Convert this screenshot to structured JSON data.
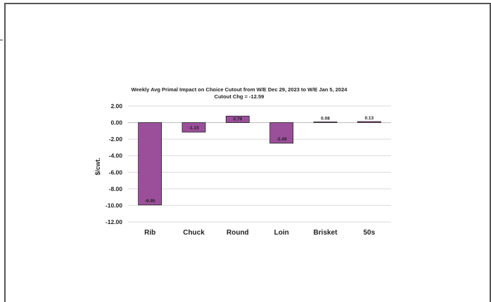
{
  "chart_data": {
    "type": "bar",
    "title": "Weekly Avg Primal Impact on Choice Cutout from W/E Dec 29, 2023 to W/E Jan 5, 2024",
    "subtitle": "Cutout Chg = -12.59",
    "ylabel": "$/cwt.",
    "xlabel": "",
    "categories": [
      "Rib",
      "Chuck",
      "Round",
      "Loin",
      "Brisket",
      "50s"
    ],
    "values": [
      -9.95,
      -1.15,
      0.79,
      -2.49,
      0.08,
      0.13
    ],
    "data_labels": [
      "-9.95",
      "-1.15",
      "0.79",
      "-2.49",
      "0.08",
      "0.13"
    ],
    "ylim": [
      -12,
      2
    ],
    "yticks": [
      2,
      0,
      -2,
      -4,
      -6,
      -8,
      -10,
      -12
    ],
    "ytick_labels": [
      "2.00",
      "0.00",
      "-2.00",
      "-4.00",
      "-6.00",
      "-8.00",
      "-10.00",
      "-12.00"
    ],
    "grid": true,
    "legend": "none",
    "bar_color": "#9b4f9b",
    "bar_border_color": "#222222",
    "frame_color": "#555555"
  }
}
